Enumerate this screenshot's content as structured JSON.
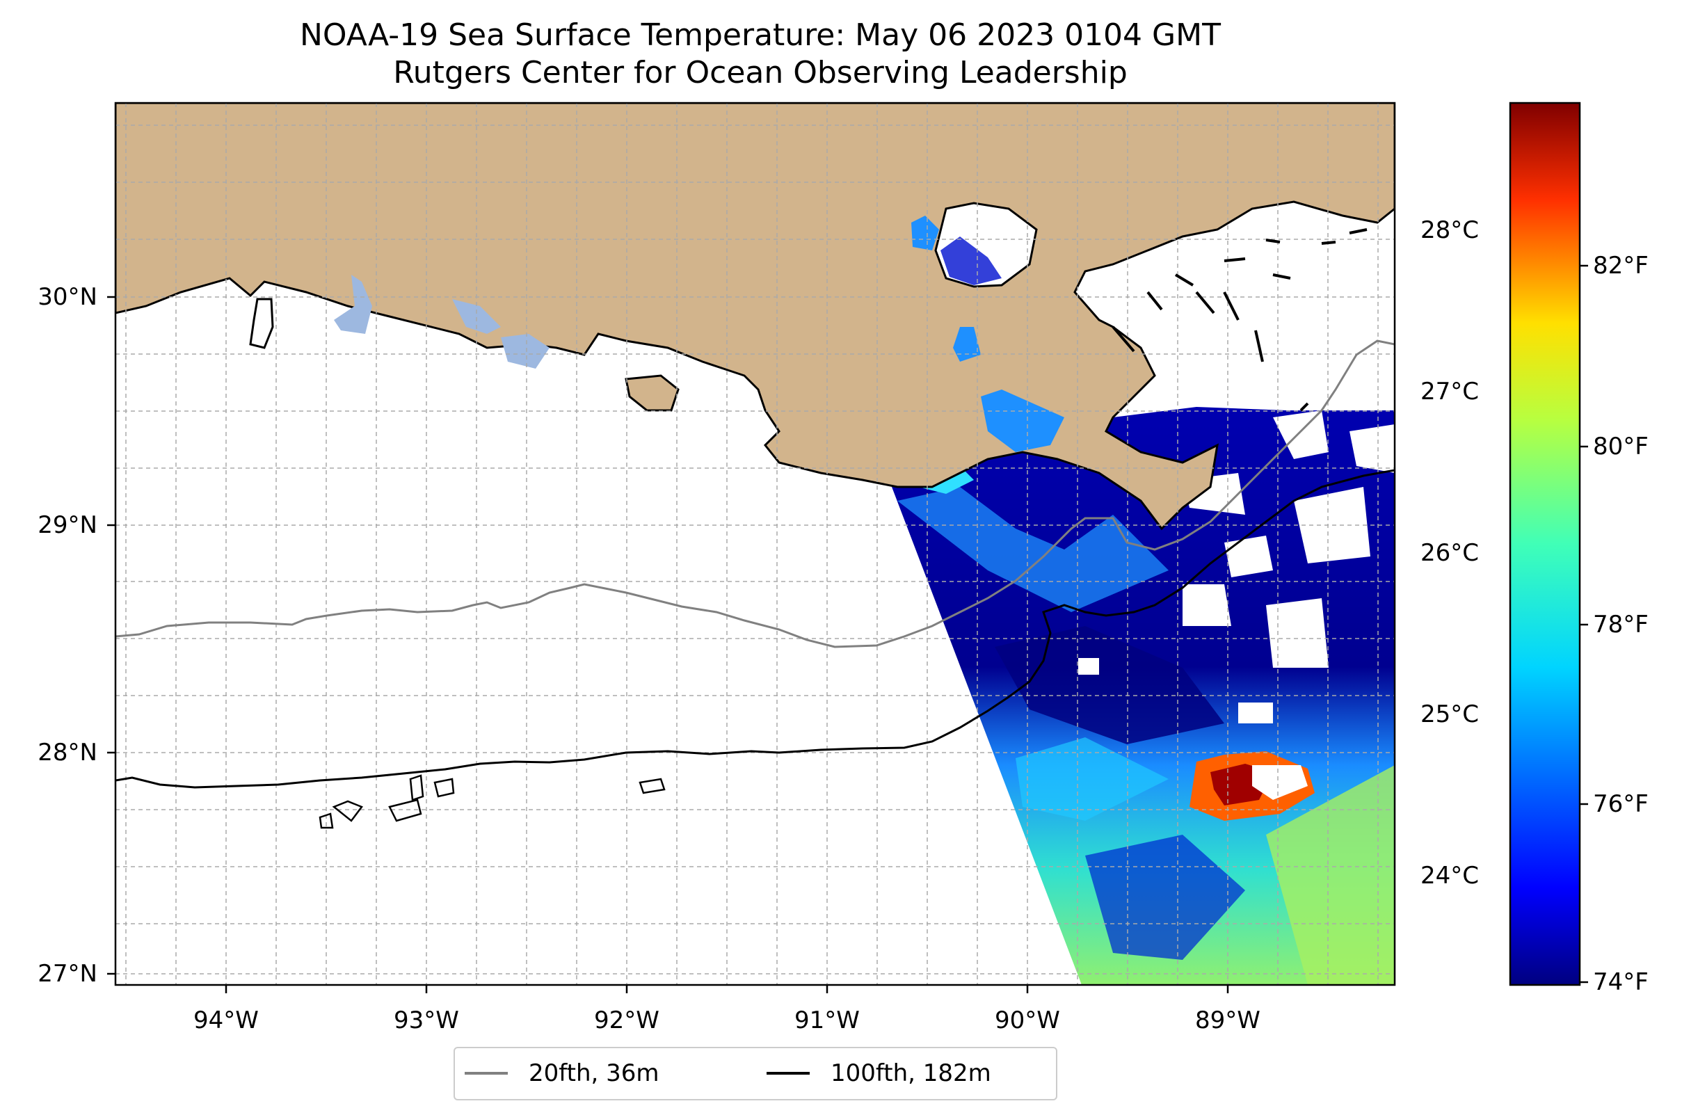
{
  "title": "NOAA-19 Sea Surface Temperature: May 06 2023 0104 GMT",
  "subtitle": "Rutgers Center for Ocean Observing Leadership",
  "map": {
    "lat_labels": [
      "30°N",
      "29°N",
      "28°N",
      "27°N"
    ],
    "lon_labels": [
      "94°W",
      "93°W",
      "92°W",
      "91°W",
      "90°W",
      "89°W"
    ],
    "land_color": "#d2b48c",
    "lake_color": "#9db8e0",
    "grid": true
  },
  "colorbar": {
    "colormap": "jet",
    "fahrenheit_labels": [
      "82°F",
      "80°F",
      "78°F",
      "76°F",
      "74°F"
    ],
    "celsius_labels": [
      "28°C",
      "27°C",
      "26°C",
      "25°C",
      "24°C"
    ],
    "range_f": [
      73.9,
      83.9
    ]
  },
  "legend": {
    "items": [
      {
        "label": "20fth, 36m",
        "color": "#808080"
      },
      {
        "label": "100fth, 182m",
        "color": "#000000"
      }
    ]
  }
}
